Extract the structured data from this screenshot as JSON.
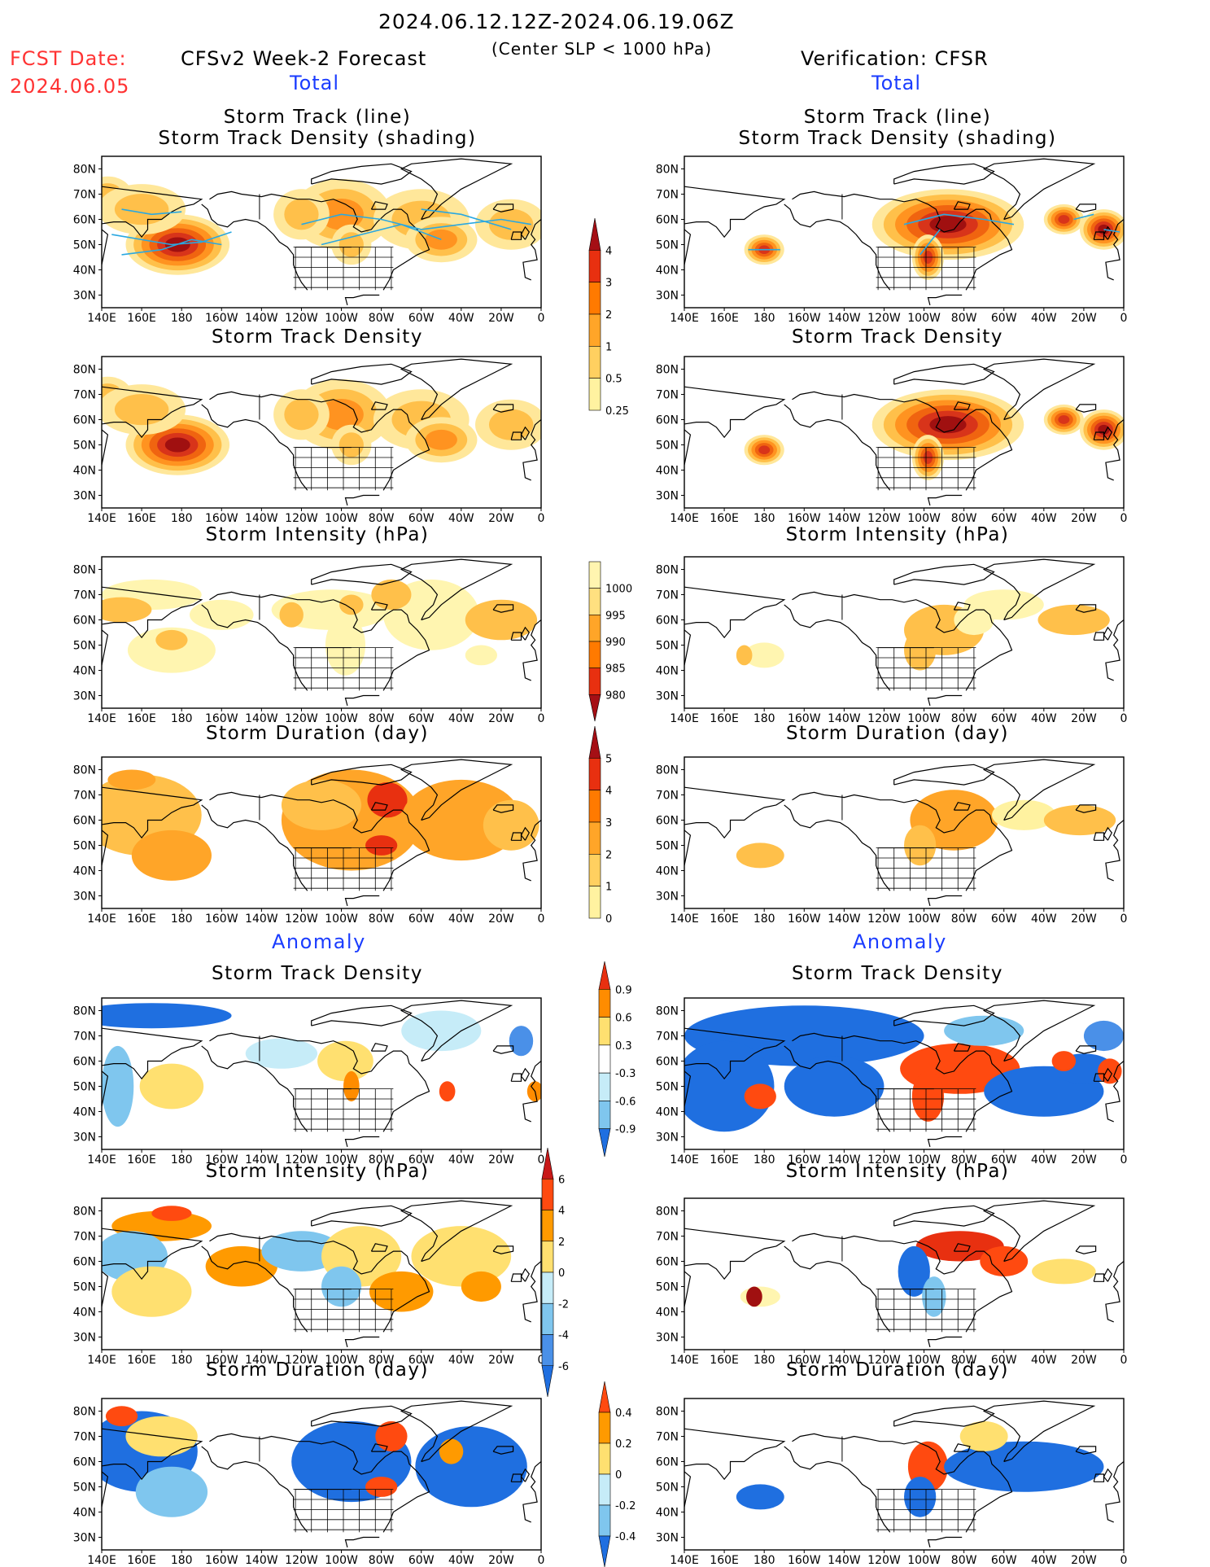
{
  "header": {
    "period": "2024.06.12.12Z-2024.06.19.06Z",
    "criterion": "(Center SLP < 1000 hPa)",
    "fcst_date_label": "FCST Date:",
    "fcst_date_value": "2024.06.05",
    "forecast_title": "CFSv2 Week-2 Forecast",
    "verification_title": "Verification: CFSR"
  },
  "sections": {
    "total": "Total",
    "anomaly": "Anomaly"
  },
  "axes": {
    "lon_labels": [
      "140E",
      "160E",
      "180",
      "160W",
      "140W",
      "120W",
      "100W",
      "80W",
      "60W",
      "40W",
      "20W",
      "0"
    ],
    "lat_labels": [
      "80N",
      "70N",
      "60N",
      "50N",
      "40N",
      "30N"
    ]
  },
  "panels": {
    "track_line_title": "Storm Track (line)",
    "track_density_shading_title": "Storm Track Density (shading)",
    "track_density_title": "Storm Track Density",
    "intensity_title": "Storm Intensity (hPa)",
    "duration_title": "Storm Duration (day)"
  },
  "colorbars": {
    "density_total": {
      "labels": [
        "4",
        "3",
        "2",
        "1",
        "0.5",
        "0.25"
      ],
      "colors": [
        "#a50f15",
        "#e83010",
        "#ff7a00",
        "#ffa528",
        "#ffd060",
        "#fff2a0"
      ]
    },
    "intensity_total": {
      "labels": [
        "1000",
        "995",
        "990",
        "985",
        "980"
      ],
      "colors": [
        "#fff5b0",
        "#ffe080",
        "#ffa528",
        "#ff7a00",
        "#e83010",
        "#a50f15"
      ]
    },
    "duration_total": {
      "labels": [
        "5",
        "4",
        "3",
        "2",
        "1",
        "0"
      ],
      "colors": [
        "#a50f15",
        "#e83010",
        "#ff7a00",
        "#ffa528",
        "#ffd060",
        "#fff2a0"
      ]
    },
    "density_anom": {
      "labels": [
        "0.9",
        "0.6",
        "0.3",
        "-0.3",
        "-0.6",
        "-0.9"
      ],
      "colors": [
        "#e83010",
        "#ff8c00",
        "#ffe070",
        "#ffffff",
        "#c6ecf8",
        "#7fc6ee",
        "#1f6fe0"
      ]
    },
    "intensity_anom": {
      "labels": [
        "6",
        "4",
        "2",
        "0",
        "-2",
        "-4",
        "-6"
      ],
      "colors": [
        "#c81818",
        "#ff4a10",
        "#ff9a00",
        "#ffe070",
        "#c6ecf8",
        "#7fc6ee",
        "#4a90e8",
        "#1f6fe0"
      ]
    },
    "duration_anom": {
      "labels": [
        "0.4",
        "0.2",
        "0",
        "-0.2",
        "-0.4"
      ],
      "colors": [
        "#ff4a10",
        "#ff9a00",
        "#ffe070",
        "#c6ecf8",
        "#7fc6ee",
        "#1f6fe0"
      ]
    }
  }
}
